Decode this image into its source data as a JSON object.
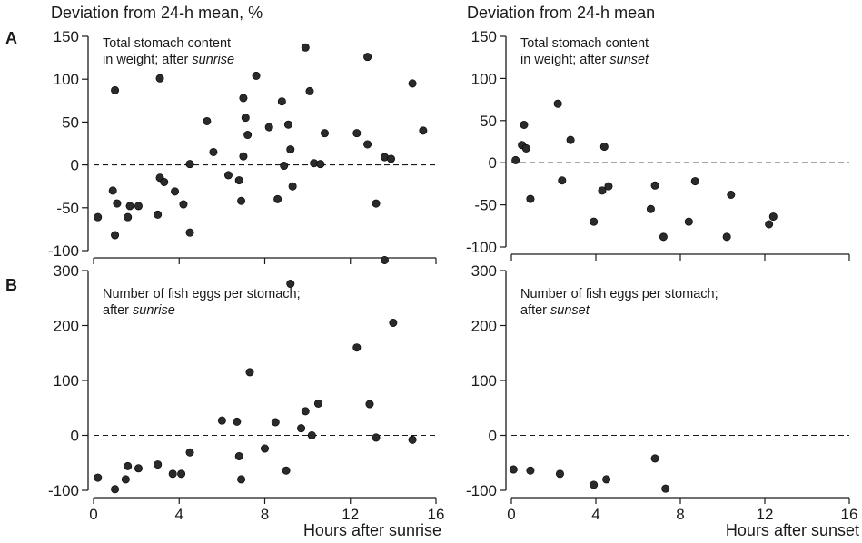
{
  "header": {
    "left_ylabel": "Deviation from 24-h mean, %",
    "right_ylabel": "Deviation from 24-h mean",
    "letter_a": "A",
    "letter_b": "B",
    "left_xlabel": "Hours after sunrise",
    "right_xlabel": "Hours after sunset"
  },
  "chart_data": [
    {
      "type": "scatter",
      "panel": "A",
      "annotation": {
        "line1": "Total stomach content",
        "line2_prefix": "in weight; after ",
        "line2_italic": "sunrise"
      },
      "xlabel": "Hours after sunrise",
      "ylabel": "Deviation from 24-h mean, %",
      "xlim": [
        0,
        16
      ],
      "ylim": [
        -100,
        150
      ],
      "x_ticks": [
        0,
        4,
        8,
        12,
        16
      ],
      "y_ticks": [
        -100,
        -50,
        0,
        50,
        100,
        150
      ],
      "reference_line": {
        "y": 0,
        "style": "dashed"
      },
      "points": [
        [
          0.2,
          -61
        ],
        [
          0.9,
          -30
        ],
        [
          1.0,
          87
        ],
        [
          1.0,
          -82
        ],
        [
          1.1,
          -45
        ],
        [
          1.6,
          -61
        ],
        [
          1.7,
          -48
        ],
        [
          2.1,
          -48
        ],
        [
          3.0,
          -58
        ],
        [
          3.1,
          101
        ],
        [
          3.1,
          -15
        ],
        [
          3.3,
          -20
        ],
        [
          3.8,
          -31
        ],
        [
          4.2,
          -46
        ],
        [
          4.5,
          -79
        ],
        [
          4.5,
          1
        ],
        [
          5.3,
          51
        ],
        [
          5.6,
          15
        ],
        [
          6.3,
          -12
        ],
        [
          6.8,
          -18
        ],
        [
          6.9,
          -42
        ],
        [
          7.0,
          78
        ],
        [
          7.0,
          10
        ],
        [
          7.1,
          55
        ],
        [
          7.2,
          35
        ],
        [
          7.6,
          104
        ],
        [
          8.2,
          44
        ],
        [
          8.6,
          -40
        ],
        [
          8.8,
          74
        ],
        [
          8.9,
          -1
        ],
        [
          9.1,
          47
        ],
        [
          9.2,
          18
        ],
        [
          9.3,
          -25
        ],
        [
          9.9,
          137
        ],
        [
          10.1,
          86
        ],
        [
          10.3,
          2
        ],
        [
          10.6,
          1
        ],
        [
          10.8,
          37
        ],
        [
          12.3,
          37
        ],
        [
          12.8,
          126
        ],
        [
          12.8,
          24
        ],
        [
          13.2,
          -45
        ],
        [
          13.6,
          9
        ],
        [
          13.9,
          7
        ],
        [
          14.9,
          95
        ],
        [
          15.4,
          40
        ]
      ]
    },
    {
      "type": "scatter",
      "panel": "A",
      "annotation": {
        "line1": "Total stomach content",
        "line2_prefix": "in weight; after ",
        "line2_italic": "sunset"
      },
      "xlabel": "Hours after sunset",
      "ylabel": "Deviation from 24-h mean",
      "xlim": [
        0,
        16
      ],
      "ylim": [
        -100,
        150
      ],
      "x_ticks": [
        0,
        4,
        8,
        12,
        16
      ],
      "y_ticks": [
        -100,
        -50,
        0,
        50,
        100,
        150
      ],
      "reference_line": {
        "y": 0,
        "style": "dashed"
      },
      "points": [
        [
          0.2,
          3
        ],
        [
          0.5,
          21
        ],
        [
          0.6,
          45
        ],
        [
          0.7,
          17
        ],
        [
          0.9,
          -43
        ],
        [
          2.2,
          70
        ],
        [
          2.4,
          -21
        ],
        [
          2.8,
          27
        ],
        [
          3.9,
          -70
        ],
        [
          4.3,
          -33
        ],
        [
          4.4,
          19
        ],
        [
          4.6,
          -28
        ],
        [
          6.6,
          -55
        ],
        [
          6.8,
          -27
        ],
        [
          7.2,
          -88
        ],
        [
          8.4,
          -70
        ],
        [
          8.7,
          -22
        ],
        [
          10.2,
          -88
        ],
        [
          10.4,
          -38
        ],
        [
          12.2,
          -73
        ],
        [
          12.4,
          -64
        ]
      ]
    },
    {
      "type": "scatter",
      "panel": "B",
      "annotation": {
        "line1": "Number of fish eggs per stomach;",
        "line2_prefix": "after ",
        "line2_italic": "sunrise"
      },
      "xlabel": "Hours after sunrise",
      "ylabel": "Deviation from 24-h mean, %",
      "xlim": [
        0,
        16
      ],
      "ylim": [
        -100,
        300
      ],
      "x_ticks": [
        0,
        4,
        8,
        12,
        16
      ],
      "y_ticks": [
        -100,
        0,
        100,
        200,
        300
      ],
      "reference_line": {
        "y": 0,
        "style": "dashed"
      },
      "points": [
        [
          0.2,
          -77
        ],
        [
          1.0,
          -98
        ],
        [
          1.5,
          -80
        ],
        [
          1.6,
          -56
        ],
        [
          2.1,
          -60
        ],
        [
          3.0,
          -53
        ],
        [
          3.7,
          -70
        ],
        [
          4.1,
          -70
        ],
        [
          4.5,
          -31
        ],
        [
          6.0,
          27
        ],
        [
          6.7,
          25
        ],
        [
          6.8,
          -38
        ],
        [
          6.9,
          -80
        ],
        [
          7.3,
          115
        ],
        [
          8.0,
          -24
        ],
        [
          8.5,
          24
        ],
        [
          9.0,
          -64
        ],
        [
          9.2,
          276
        ],
        [
          9.7,
          13
        ],
        [
          9.9,
          44
        ],
        [
          10.2,
          0
        ],
        [
          10.5,
          58
        ],
        [
          12.3,
          160
        ],
        [
          12.9,
          57
        ],
        [
          13.2,
          -4
        ],
        [
          13.6,
          319
        ],
        [
          14.0,
          205
        ],
        [
          14.9,
          -8
        ]
      ]
    },
    {
      "type": "scatter",
      "panel": "B",
      "annotation": {
        "line1": "Number of fish eggs per stomach;",
        "line2_prefix": "after ",
        "line2_italic": "sunset"
      },
      "xlabel": "Hours after sunset",
      "ylabel": "Deviation from 24-h mean",
      "xlim": [
        0,
        16
      ],
      "ylim": [
        -100,
        300
      ],
      "x_ticks": [
        0,
        4,
        8,
        12,
        16
      ],
      "y_ticks": [
        -100,
        0,
        100,
        200,
        300
      ],
      "reference_line": {
        "y": 0,
        "style": "dashed"
      },
      "points": [
        [
          0.1,
          -62
        ],
        [
          0.9,
          -64
        ],
        [
          2.3,
          -70
        ],
        [
          3.9,
          -90
        ],
        [
          4.5,
          -80
        ],
        [
          6.8,
          -42
        ],
        [
          7.3,
          -97
        ]
      ]
    }
  ]
}
